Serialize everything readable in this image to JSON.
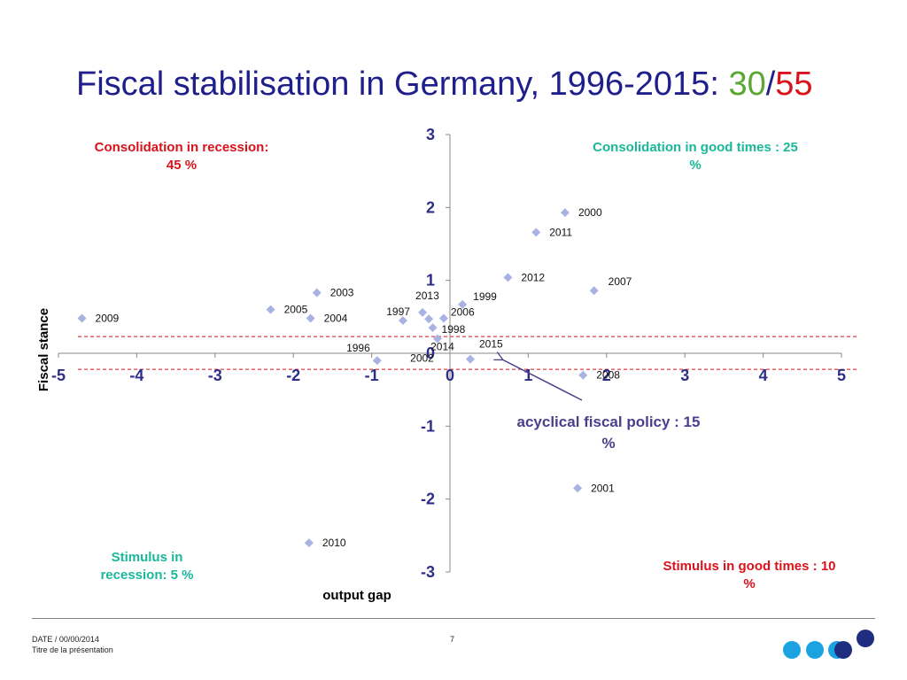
{
  "title": {
    "main": "Fiscal stabilisation in Germany, 1996-2015: ",
    "highlight_green": "30",
    "separator": "/",
    "highlight_red": "55"
  },
  "quadrants": {
    "top_left": "Consolidation in recession:\n45 %",
    "top_right": "Consolidation in good times : 25\n%",
    "bottom_left": "Stimulus in\nrecession:   5 %",
    "bottom_right": "Stimulus in good times : 10\n%",
    "acyclical": "acyclical fiscal policy : 15\n%"
  },
  "colors": {
    "title": "#1f1f8c",
    "axis_text": "#2e2e8a",
    "marker": "#a9b3e3",
    "red": "#d9121b",
    "teal": "#19b89a",
    "purple": "#4a3f8c",
    "dash": "#d9121b",
    "logo_light": "#1aa3e0",
    "logo_dark": "#1f2d80"
  },
  "footer": {
    "date": "DATE / 00/00/2014",
    "subtitle": "Titre de la présentation",
    "page": "7"
  },
  "chart_data": {
    "type": "scatter",
    "title": "",
    "xlabel": "output gap",
    "ylabel": "Fiscal stance",
    "xlim": [
      -5,
      5
    ],
    "ylim": [
      -3,
      3
    ],
    "x_ticks": [
      "-5",
      "-4",
      "-3",
      "-2",
      "-1",
      "0",
      "1",
      "2",
      "3",
      "4",
      "5"
    ],
    "y_ticks": [
      "3",
      "2",
      "1",
      "0",
      "-1",
      "-2",
      "-3"
    ],
    "dashed_band": [
      0.23,
      -0.22
    ],
    "points": [
      {
        "label": "1996",
        "x": -0.93,
        "y": -0.1
      },
      {
        "label": "1997",
        "x": -0.6,
        "y": 0.45
      },
      {
        "label": "1998",
        "x": -0.22,
        "y": 0.35
      },
      {
        "label": "1999",
        "x": 0.16,
        "y": 0.67
      },
      {
        "label": "2000",
        "x": 1.47,
        "y": 1.93
      },
      {
        "label": "2001",
        "x": 1.63,
        "y": -1.85
      },
      {
        "label": "2002",
        "x": -0.16,
        "y": 0.2
      },
      {
        "label": "2003",
        "x": -1.7,
        "y": 0.83
      },
      {
        "label": "2004",
        "x": -1.78,
        "y": 0.48
      },
      {
        "label": "2005",
        "x": -2.29,
        "y": 0.6
      },
      {
        "label": "2006",
        "x": -0.08,
        "y": 0.48
      },
      {
        "label": "2007",
        "x": 1.84,
        "y": 0.86
      },
      {
        "label": "2008",
        "x": 1.7,
        "y": -0.3
      },
      {
        "label": "2009",
        "x": -4.7,
        "y": 0.48
      },
      {
        "label": "2010",
        "x": -1.8,
        "y": -2.6
      },
      {
        "label": "2011",
        "x": 1.1,
        "y": 1.66
      },
      {
        "label": "2012",
        "x": 0.74,
        "y": 1.04
      },
      {
        "label": "2013",
        "x": -0.35,
        "y": 0.56
      },
      {
        "label": "2014",
        "x": -0.27,
        "y": 0.47
      },
      {
        "label": "2015",
        "x": 0.26,
        "y": -0.08
      }
    ]
  }
}
